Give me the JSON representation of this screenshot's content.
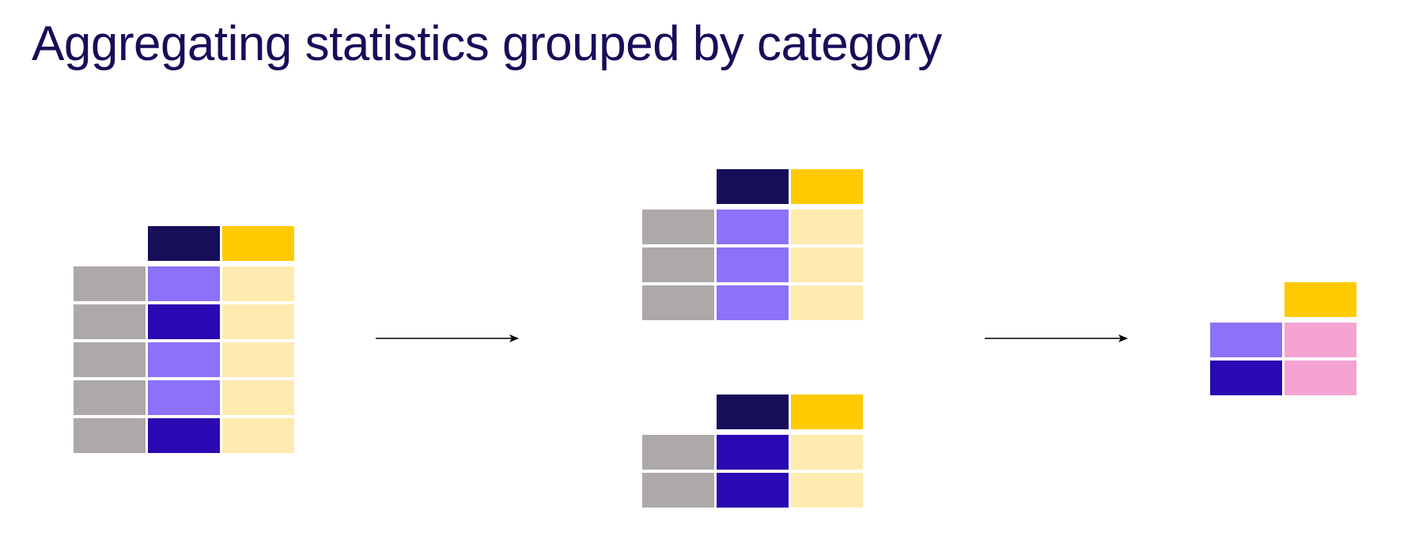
{
  "title": "Aggregating statistics grouped by category",
  "colors": {
    "title": "#170E5A",
    "header_dark": "#170E5A",
    "header_yellow": "#FFCA00",
    "index_grey": "#ACA9A8",
    "group_a_purple": "#8C72F8",
    "group_b_indigo": "#2A09B2",
    "value_light_yellow": "#FFEBAF",
    "aggregate_pink": "#F5A3D3",
    "arrow": "#000000"
  },
  "stages": [
    {
      "name": "input-table",
      "groups_per_row": [
        "a",
        "b",
        "a",
        "a",
        "b"
      ]
    },
    {
      "name": "group-a-table",
      "groups_per_row": [
        "a",
        "a",
        "a"
      ]
    },
    {
      "name": "group-b-table",
      "groups_per_row": [
        "b",
        "b"
      ]
    },
    {
      "name": "aggregated-table",
      "groups_per_row": [
        "a",
        "b"
      ]
    }
  ]
}
